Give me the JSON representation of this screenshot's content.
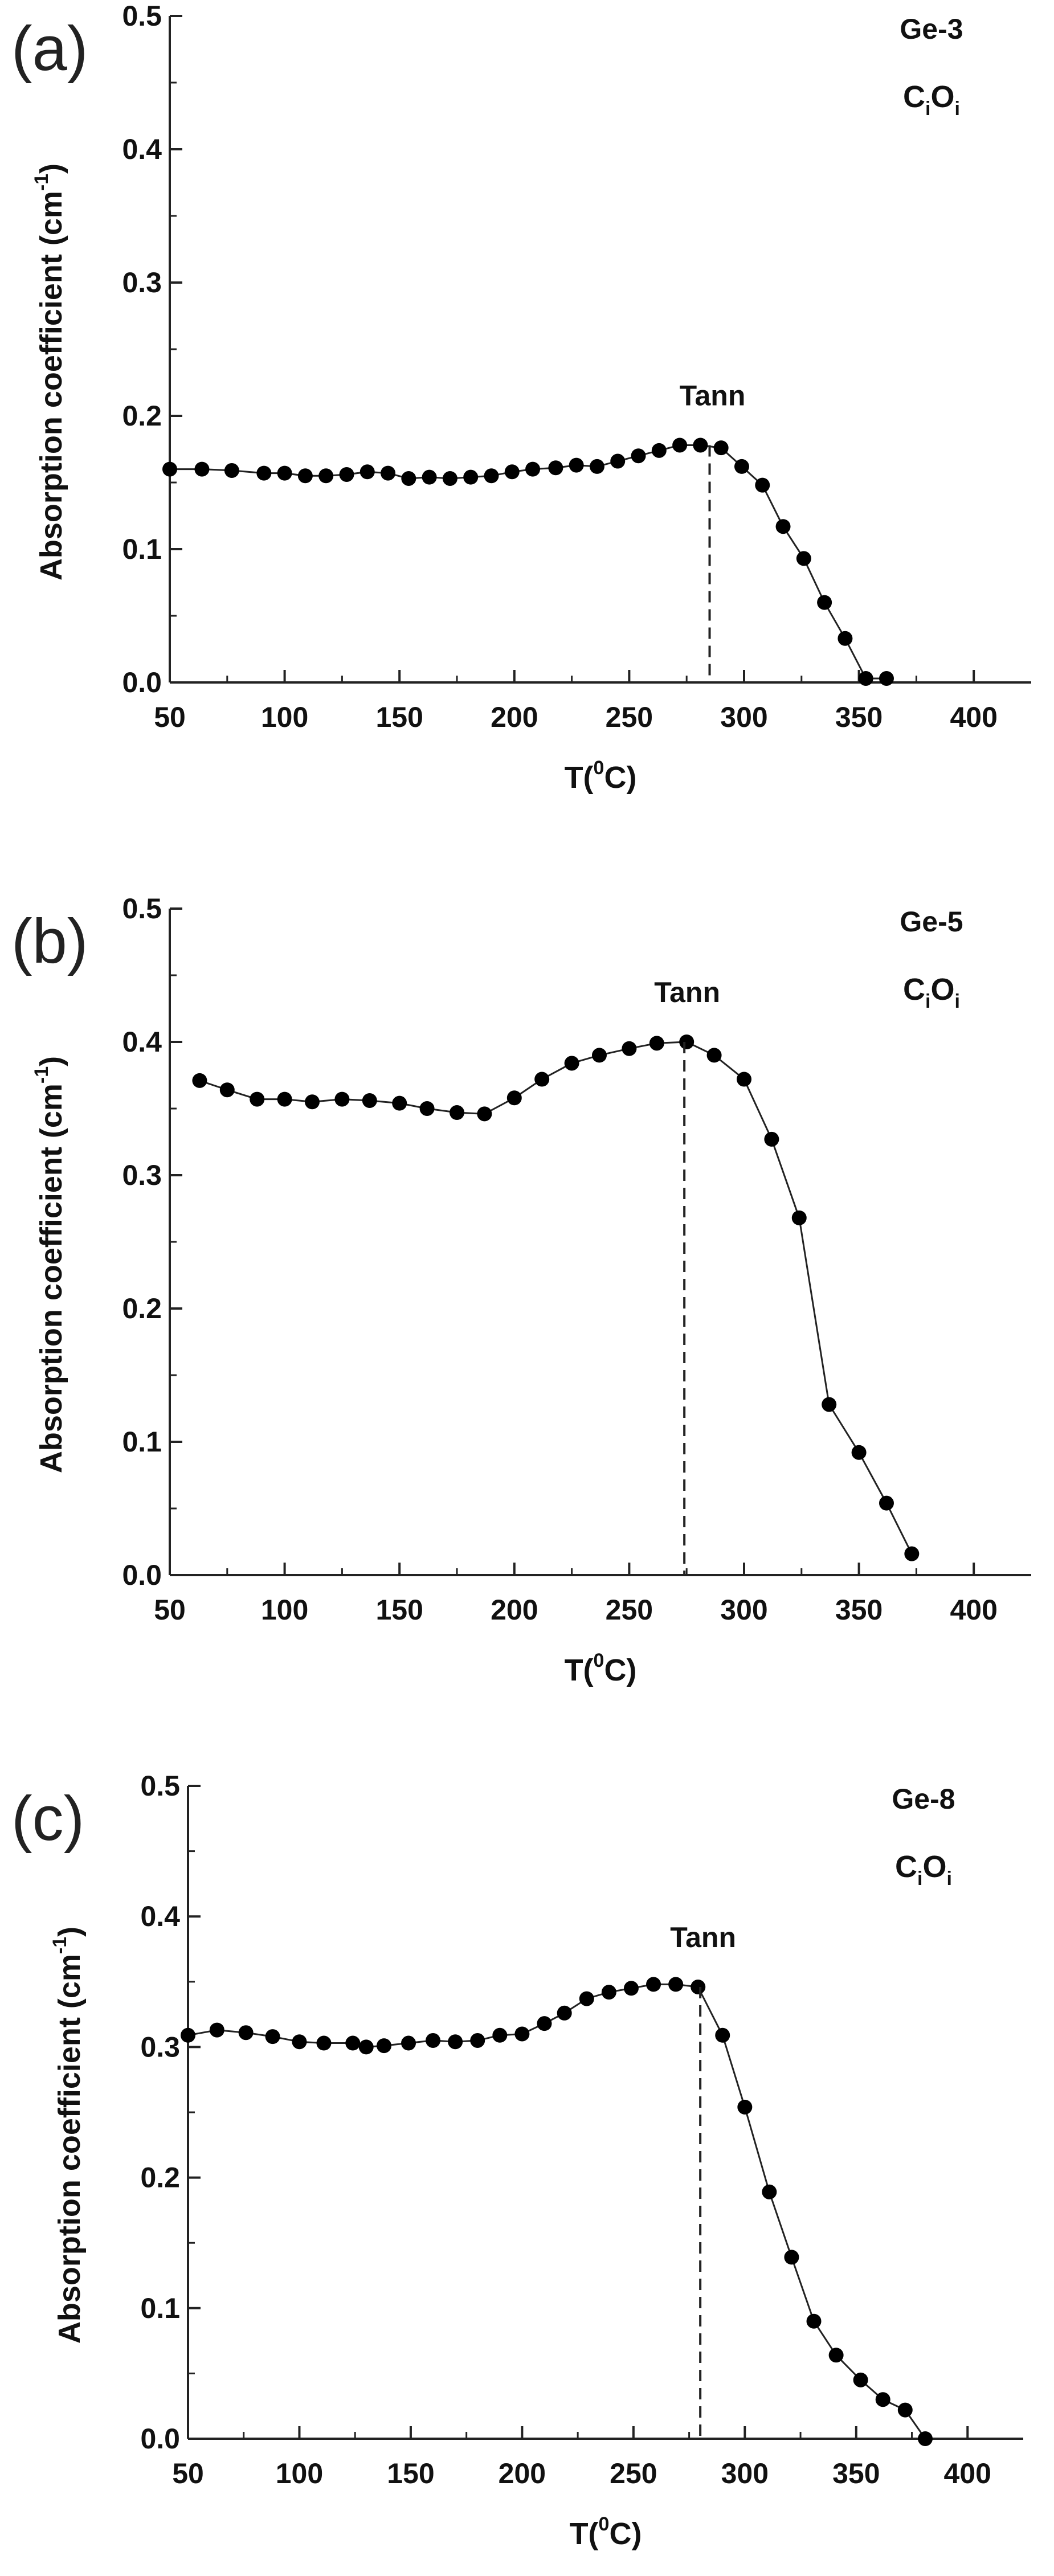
{
  "chart_data": [
    {
      "type": "line",
      "panel_label": "(a)",
      "sample": "Ge-3",
      "defect": {
        "main1": "C",
        "sub1": "i",
        "main2": "O",
        "sub2": "i"
      },
      "annotation": "Tann",
      "tann_x": 285,
      "xlabel": {
        "pre": "T(",
        "sup": "0",
        "post": "C)"
      },
      "ylabel": {
        "pre": "Absorption coefficient (cm",
        "sup": "-1",
        "post": ")"
      },
      "xlim": [
        50,
        425
      ],
      "ylim": [
        0,
        0.5
      ],
      "xticks": [
        "50",
        "100",
        "150",
        "200",
        "250",
        "300",
        "350",
        "400"
      ],
      "yticks": [
        "0.0",
        "0.1",
        "0.2",
        "0.3",
        "0.4",
        "0.5"
      ],
      "x": [
        50,
        64,
        77,
        91,
        100,
        109,
        118,
        127,
        136,
        145,
        154,
        163,
        172,
        181,
        190,
        199,
        208,
        218,
        227,
        236,
        245,
        254,
        263,
        272,
        281,
        290,
        299,
        308,
        317,
        326,
        335,
        344,
        353,
        362
      ],
      "y": [
        0.16,
        0.16,
        0.159,
        0.157,
        0.157,
        0.155,
        0.155,
        0.156,
        0.158,
        0.157,
        0.153,
        0.154,
        0.153,
        0.154,
        0.155,
        0.158,
        0.16,
        0.161,
        0.163,
        0.162,
        0.166,
        0.17,
        0.174,
        0.178,
        0.178,
        0.176,
        0.162,
        0.148,
        0.117,
        0.093,
        0.06,
        0.033,
        0.003,
        0.003
      ]
    },
    {
      "type": "line",
      "panel_label": "(b)",
      "sample": "Ge-5",
      "defect": {
        "main1": "C",
        "sub1": "i",
        "main2": "O",
        "sub2": "i"
      },
      "annotation": "Tann",
      "tann_x": 274,
      "xlabel": {
        "pre": "T(",
        "sup": "0",
        "post": "C)"
      },
      "ylabel": {
        "pre": "Absorption coefficient (cm",
        "sup": "-1",
        "post": ")"
      },
      "xlim": [
        50,
        425
      ],
      "ylim": [
        0,
        0.5
      ],
      "xticks": [
        "50",
        "100",
        "150",
        "200",
        "250",
        "300",
        "350",
        "400"
      ],
      "yticks": [
        "0.0",
        "0.1",
        "0.2",
        "0.3",
        "0.4",
        "0.5"
      ],
      "x": [
        63,
        75,
        88,
        100,
        112,
        125,
        137,
        150,
        162,
        175,
        187,
        200,
        212,
        225,
        237,
        250,
        262,
        275,
        287,
        300,
        312,
        324,
        337,
        350,
        362,
        373
      ],
      "y": [
        0.371,
        0.364,
        0.357,
        0.357,
        0.355,
        0.357,
        0.356,
        0.354,
        0.35,
        0.347,
        0.346,
        0.358,
        0.372,
        0.384,
        0.39,
        0.395,
        0.399,
        0.4,
        0.39,
        0.372,
        0.327,
        0.268,
        0.128,
        0.092,
        0.054,
        0.016
      ]
    },
    {
      "type": "line",
      "panel_label": "(c)",
      "sample": "Ge-8",
      "defect": {
        "main1": "C",
        "sub1": "i",
        "main2": "O",
        "sub2": "i"
      },
      "annotation": "Tann",
      "tann_x": 280,
      "xlabel": {
        "pre": "T(",
        "sup": "0",
        "post": "C)"
      },
      "ylabel": {
        "pre": "Absorption coefficient (cm",
        "sup": "-1",
        "post": ")"
      },
      "xlim": [
        50,
        425
      ],
      "ylim": [
        0,
        0.5
      ],
      "xticks": [
        "50",
        "100",
        "150",
        "200",
        "250",
        "300",
        "350",
        "400"
      ],
      "yticks": [
        "0.0",
        "0.1",
        "0.2",
        "0.3",
        "0.4",
        "0.5"
      ],
      "x": [
        50,
        63,
        76,
        88,
        100,
        111,
        124,
        130,
        138,
        149,
        160,
        170,
        180,
        190,
        200,
        210,
        219,
        229,
        239,
        249,
        259,
        269,
        279,
        290,
        300,
        311,
        321,
        331,
        341,
        352,
        362,
        372,
        381
      ],
      "y": [
        0.309,
        0.313,
        0.311,
        0.308,
        0.304,
        0.303,
        0.303,
        0.3,
        0.301,
        0.303,
        0.305,
        0.304,
        0.305,
        0.309,
        0.31,
        0.318,
        0.326,
        0.337,
        0.342,
        0.345,
        0.348,
        0.348,
        0.346,
        0.309,
        0.254,
        0.189,
        0.139,
        0.09,
        0.064,
        0.045,
        0.03,
        0.022,
        0.0
      ]
    }
  ]
}
